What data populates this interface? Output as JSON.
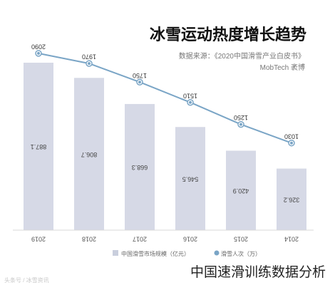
{
  "chart_data": {
    "type": "bar",
    "title": "冰雪运动热度增长趋势",
    "source": "数据来源：《2020中国滑雪产业白皮书》",
    "source_org": "MobTech 袤博",
    "categories": [
      "2019",
      "2018",
      "2017",
      "2016",
      "2015",
      "2014"
    ],
    "series": [
      {
        "name": "中国滑雪市场规模（亿元）",
        "type": "bar",
        "values": [
          887.1,
          806.7,
          668.3,
          546.5,
          420.9,
          326.2
        ],
        "labels": [
          "887.1",
          "806.7",
          "668.3",
          "546.5",
          "420.9",
          "326.2"
        ]
      },
      {
        "name": "滑雪人次（万）",
        "type": "line",
        "values": [
          2090,
          1970,
          1750,
          1510,
          1250,
          1030
        ],
        "labels": [
          "2090",
          "1970",
          "1750",
          "1510",
          "1250",
          "1030"
        ]
      }
    ],
    "bar_ylim": [
      0,
      940
    ],
    "line_ylim": [
      0,
      2215
    ],
    "colors": {
      "bar": "#d6d9e6",
      "line": "#7aa5c6",
      "text": "#444444",
      "legend_bar": "#c9cedd",
      "legend_line": "#7aa5c6"
    },
    "legend_position": "bottom"
  },
  "watermark": "中国速滑训练数据分析",
  "watermark_small": "头条号 / 冰雪资讯"
}
